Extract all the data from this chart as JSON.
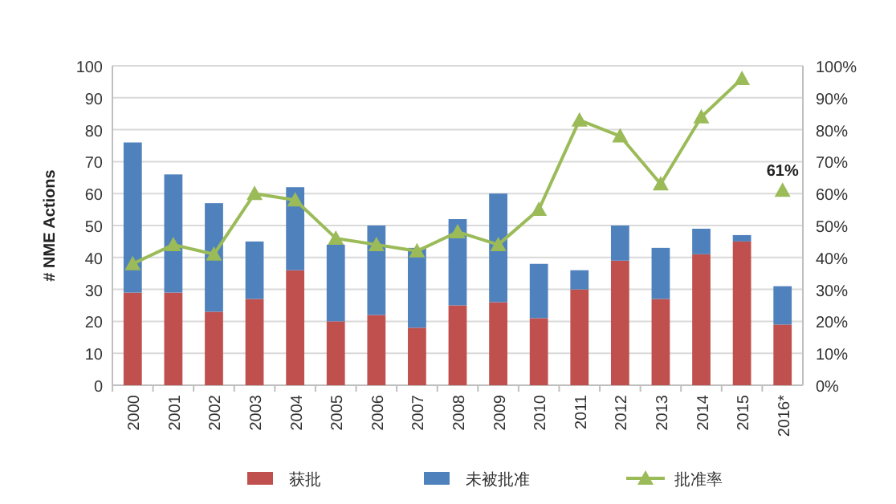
{
  "chart_data": {
    "type": "bar",
    "stacked": true,
    "ylabel": "# NME Actions",
    "categories": [
      "2000",
      "2001",
      "2002",
      "2003",
      "2004",
      "2005",
      "2006",
      "2007",
      "2008",
      "2009",
      "2010",
      "2011",
      "2012",
      "2013",
      "2014",
      "2015",
      "2016*"
    ],
    "series": [
      {
        "name": "获批",
        "color": "#c0504d",
        "values": [
          29,
          29,
          23,
          27,
          36,
          20,
          22,
          18,
          25,
          26,
          21,
          30,
          39,
          27,
          41,
          45,
          19
        ]
      },
      {
        "name": "未被批准",
        "color": "#4f81bd",
        "values": [
          47,
          37,
          34,
          18,
          26,
          24,
          28,
          25,
          27,
          34,
          17,
          6,
          11,
          16,
          8,
          2,
          12
        ]
      },
      {
        "name": "批准率",
        "type": "line",
        "axis": "y2",
        "color": "#9bbb59",
        "values": [
          38,
          44,
          41,
          60,
          58,
          46,
          44,
          42,
          48,
          44,
          55,
          83,
          78,
          63,
          84,
          96,
          null
        ]
      },
      {
        "type": "scatter",
        "axis": "y2",
        "color": "#9bbb59",
        "values": [
          null,
          null,
          null,
          null,
          null,
          null,
          null,
          null,
          null,
          null,
          null,
          null,
          null,
          null,
          null,
          null,
          61
        ],
        "value_labels": [
          null,
          null,
          null,
          null,
          null,
          null,
          null,
          null,
          null,
          null,
          null,
          null,
          null,
          null,
          null,
          null,
          "61%"
        ]
      }
    ],
    "ylim": [
      0,
      100
    ],
    "yticks": [
      0,
      10,
      20,
      30,
      40,
      50,
      60,
      70,
      80,
      90,
      100
    ],
    "y2lim": [
      0,
      100
    ],
    "y2ticks": [
      {
        "value": 0,
        "label": "0%"
      },
      {
        "value": 10,
        "label": "10%"
      },
      {
        "value": 20,
        "label": "20%"
      },
      {
        "value": 30,
        "label": "30%"
      },
      {
        "value": 40,
        "label": "40%"
      },
      {
        "value": 50,
        "label": "50%"
      },
      {
        "value": 60,
        "label": "60%"
      },
      {
        "value": 70,
        "label": "70%"
      },
      {
        "value": 80,
        "label": "80%"
      },
      {
        "value": 90,
        "label": "90%"
      },
      {
        "value": 100,
        "label": "100%"
      }
    ],
    "grid": "y",
    "legend": "bottom",
    "marker": "triangle"
  }
}
